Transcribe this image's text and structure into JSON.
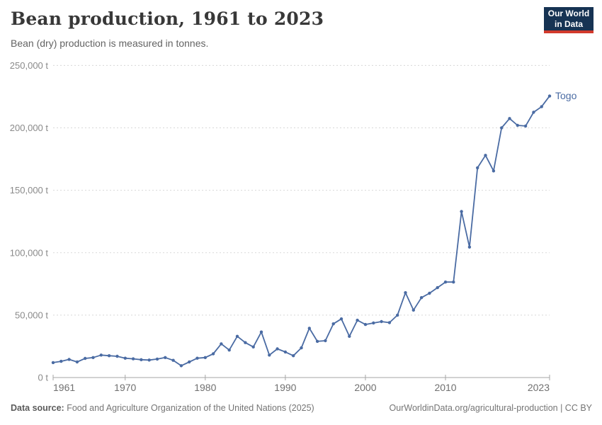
{
  "header": {
    "title": "Bean production, 1961 to 2023",
    "subtitle": "Bean (dry) production is measured in tonnes.",
    "logo": {
      "line1": "Our World",
      "line2": "in Data",
      "bg_color": "#163353",
      "bar_color": "#d23a2c"
    }
  },
  "chart_data": {
    "type": "line",
    "title": "Bean production, 1961 to 2023",
    "xlabel": "",
    "ylabel": "",
    "unit": "t",
    "xlim": [
      1961,
      2023
    ],
    "ylim": [
      0,
      250000
    ],
    "grid": "horizontal-dashed",
    "legend_position": "end-of-line-label",
    "x": [
      1961,
      1962,
      1963,
      1964,
      1965,
      1966,
      1967,
      1968,
      1969,
      1970,
      1971,
      1972,
      1973,
      1974,
      1975,
      1976,
      1977,
      1978,
      1979,
      1980,
      1981,
      1982,
      1983,
      1984,
      1985,
      1986,
      1987,
      1988,
      1989,
      1990,
      1991,
      1992,
      1993,
      1994,
      1995,
      1996,
      1997,
      1998,
      1999,
      2000,
      2001,
      2002,
      2003,
      2004,
      2005,
      2006,
      2007,
      2008,
      2009,
      2010,
      2011,
      2012,
      2013,
      2014,
      2015,
      2016,
      2017,
      2018,
      2019,
      2020,
      2021,
      2022,
      2023
    ],
    "series": [
      {
        "name": "Togo",
        "color": "#4a6ba3",
        "values": [
          12000,
          13000,
          14500,
          12500,
          15300,
          16000,
          18000,
          17500,
          17000,
          15500,
          15000,
          14300,
          14000,
          14800,
          16000,
          13800,
          9500,
          12500,
          15500,
          16000,
          19000,
          27000,
          22000,
          33000,
          28000,
          24500,
          36500,
          18000,
          23000,
          20500,
          17500,
          23800,
          39500,
          29000,
          29500,
          43000,
          47000,
          33000,
          45900,
          42500,
          43700,
          44800,
          44000,
          50000,
          68000,
          54000,
          64000,
          67500,
          72000,
          76500,
          76500,
          133000,
          104500,
          168000,
          178000,
          165500,
          200000,
          207500,
          202000,
          201500,
          212500,
          217000,
          225500
        ]
      }
    ],
    "y_ticks": [
      {
        "value": 0,
        "label": "0 t"
      },
      {
        "value": 50000,
        "label": "50,000 t"
      },
      {
        "value": 100000,
        "label": "100,000 t"
      },
      {
        "value": 150000,
        "label": "150,000 t"
      },
      {
        "value": 200000,
        "label": "200,000 t"
      },
      {
        "value": 250000,
        "label": "250,000 t"
      }
    ],
    "x_ticks": [
      {
        "value": 1961,
        "label": "1961"
      },
      {
        "value": 1970,
        "label": "1970"
      },
      {
        "value": 1980,
        "label": "1980"
      },
      {
        "value": 1990,
        "label": "1990"
      },
      {
        "value": 2000,
        "label": "2000"
      },
      {
        "value": 2010,
        "label": "2010"
      },
      {
        "value": 2023,
        "label": "2023"
      }
    ]
  },
  "footer": {
    "source_label": "Data source:",
    "source_text": " Food and Agriculture Organization of the United Nations (2025)",
    "link_text": "OurWorldinData.org/agricultural-production | CC BY"
  }
}
